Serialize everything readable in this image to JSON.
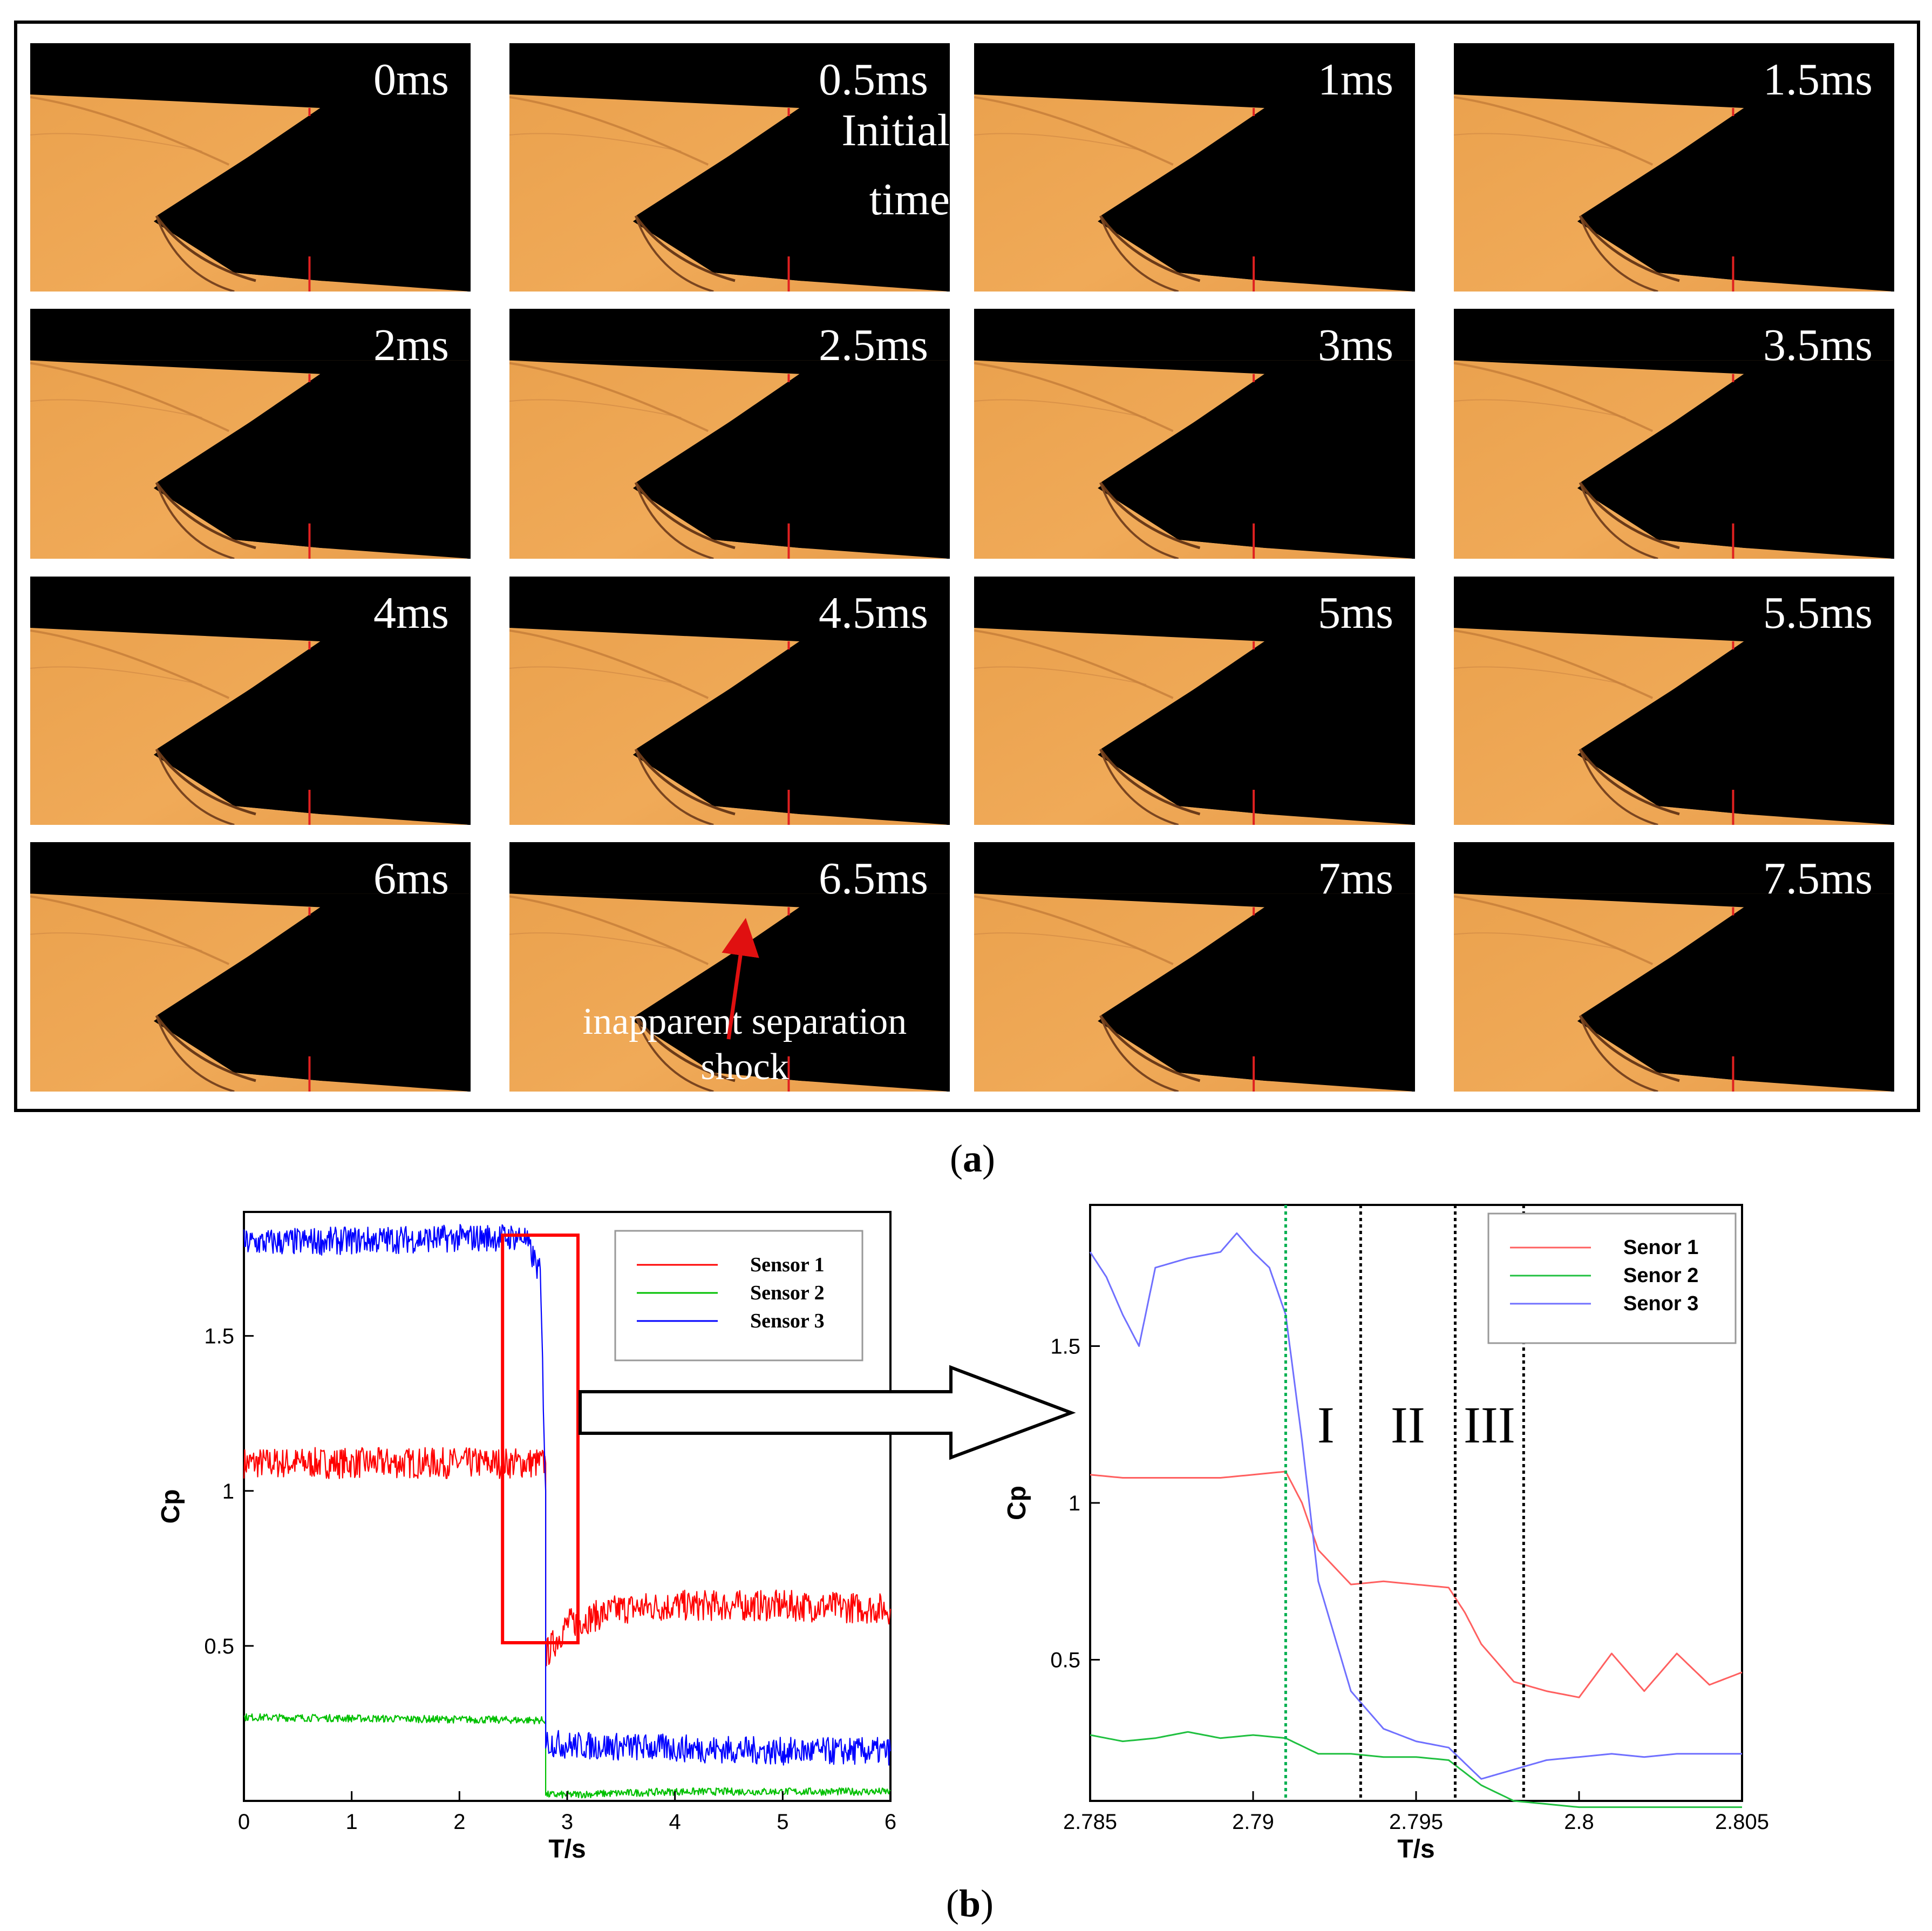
{
  "panel_a": {
    "caption_letter": "a",
    "frames": [
      {
        "label": "0ms"
      },
      {
        "label": "0.5ms"
      },
      {
        "label": "1ms"
      },
      {
        "label": "1.5ms"
      },
      {
        "label": "2ms"
      },
      {
        "label": "2.5ms"
      },
      {
        "label": "3ms"
      },
      {
        "label": "3.5ms"
      },
      {
        "label": "4ms"
      },
      {
        "label": "4.5ms"
      },
      {
        "label": "5ms"
      },
      {
        "label": "5.5ms"
      },
      {
        "label": "6ms"
      },
      {
        "label": "6.5ms"
      },
      {
        "label": "7ms"
      },
      {
        "label": "7.5ms"
      }
    ],
    "initial_line1": "Initial",
    "initial_line2": "time",
    "annotation_line1": "inapparent separation",
    "annotation_line2": "shock"
  },
  "panel_b": {
    "caption_letter": "b"
  },
  "chart_data": [
    {
      "type": "line",
      "xlabel": "T/s",
      "ylabel": "Cp",
      "xlim": [
        0,
        6
      ],
      "ylim": [
        0,
        1.9
      ],
      "xticks": [
        "0",
        "1",
        "2",
        "3",
        "4",
        "5",
        "6"
      ],
      "yticks": [
        "0.5",
        "1",
        "1.5"
      ],
      "series": [
        {
          "name": "Sensor 1",
          "color": "#ff0000",
          "x": [
            0,
            2.8,
            2.8,
            3.0,
            3.5,
            4,
            5,
            6
          ],
          "values": [
            1.09,
            1.09,
            0.47,
            0.57,
            0.62,
            0.63,
            0.63,
            0.62
          ]
        },
        {
          "name": "Sensor 2",
          "color": "#00c000",
          "x": [
            0,
            2.8,
            2.8,
            3,
            4,
            5,
            6
          ],
          "values": [
            0.27,
            0.26,
            0.02,
            0.02,
            0.03,
            0.03,
            0.03
          ]
        },
        {
          "name": "Sensor 3",
          "color": "#0000ff",
          "x": [
            0,
            2.6,
            2.75,
            2.8,
            2.8,
            3.0,
            4,
            5,
            6
          ],
          "values": [
            1.8,
            1.82,
            1.7,
            1.0,
            0.19,
            0.18,
            0.17,
            0.16,
            0.16
          ]
        }
      ],
      "highlight_box_x": [
        2.4,
        3.1
      ],
      "highlight_color": "#ff0000",
      "legend_position": "top-right"
    },
    {
      "type": "line",
      "xlabel": "T/s",
      "ylabel": "Cp",
      "xlim": [
        2.785,
        2.805
      ],
      "ylim": [
        0.05,
        1.95
      ],
      "xticks": [
        "2.785",
        "2.79",
        "2.795",
        "2.8",
        "2.805"
      ],
      "yticks": [
        "0.5",
        "1",
        "1.5"
      ],
      "series": [
        {
          "name": "Senor 1",
          "color": "#ff6060",
          "x": [
            2.785,
            2.786,
            2.787,
            2.788,
            2.789,
            2.79,
            2.791,
            2.7915,
            2.792,
            2.793,
            2.794,
            2.795,
            2.796,
            2.7965,
            2.797,
            2.798,
            2.799,
            2.8,
            2.801,
            2.802,
            2.803,
            2.804,
            2.805
          ],
          "values": [
            1.09,
            1.08,
            1.08,
            1.08,
            1.08,
            1.09,
            1.1,
            1.0,
            0.85,
            0.74,
            0.75,
            0.74,
            0.73,
            0.65,
            0.55,
            0.43,
            0.4,
            0.38,
            0.52,
            0.4,
            0.52,
            0.42,
            0.46
          ]
        },
        {
          "name": "Senor 2",
          "color": "#20c040",
          "x": [
            2.785,
            2.786,
            2.787,
            2.788,
            2.789,
            2.79,
            2.791,
            2.792,
            2.793,
            2.794,
            2.795,
            2.796,
            2.797,
            2.798,
            2.799,
            2.8,
            2.805
          ],
          "values": [
            0.26,
            0.24,
            0.25,
            0.27,
            0.25,
            0.26,
            0.25,
            0.2,
            0.2,
            0.19,
            0.19,
            0.18,
            0.1,
            0.05,
            0.04,
            0.03,
            0.03
          ]
        },
        {
          "name": "Senor 3",
          "color": "#7070ff",
          "x": [
            2.785,
            2.7855,
            2.786,
            2.7865,
            2.787,
            2.788,
            2.789,
            2.7895,
            2.79,
            2.7905,
            2.791,
            2.7915,
            2.792,
            2.793,
            2.794,
            2.795,
            2.796,
            2.797,
            2.798,
            2.799,
            2.8,
            2.801,
            2.802,
            2.803,
            2.804,
            2.805
          ],
          "values": [
            1.8,
            1.72,
            1.6,
            1.5,
            1.75,
            1.78,
            1.8,
            1.86,
            1.8,
            1.75,
            1.6,
            1.2,
            0.75,
            0.4,
            0.28,
            0.24,
            0.22,
            0.12,
            0.15,
            0.18,
            0.19,
            0.2,
            0.19,
            0.2,
            0.2,
            0.2
          ]
        }
      ],
      "vlines": [
        {
          "x": 2.791,
          "color": "#00b050",
          "style": "dotted"
        },
        {
          "x": 2.7933,
          "color": "#000000",
          "style": "dotted"
        },
        {
          "x": 2.7962,
          "color": "#000000",
          "style": "dotted"
        },
        {
          "x": 2.7983,
          "color": "#000000",
          "style": "dotted"
        }
      ],
      "region_labels": [
        "I",
        "II",
        "III"
      ],
      "legend_position": "top-right"
    }
  ]
}
